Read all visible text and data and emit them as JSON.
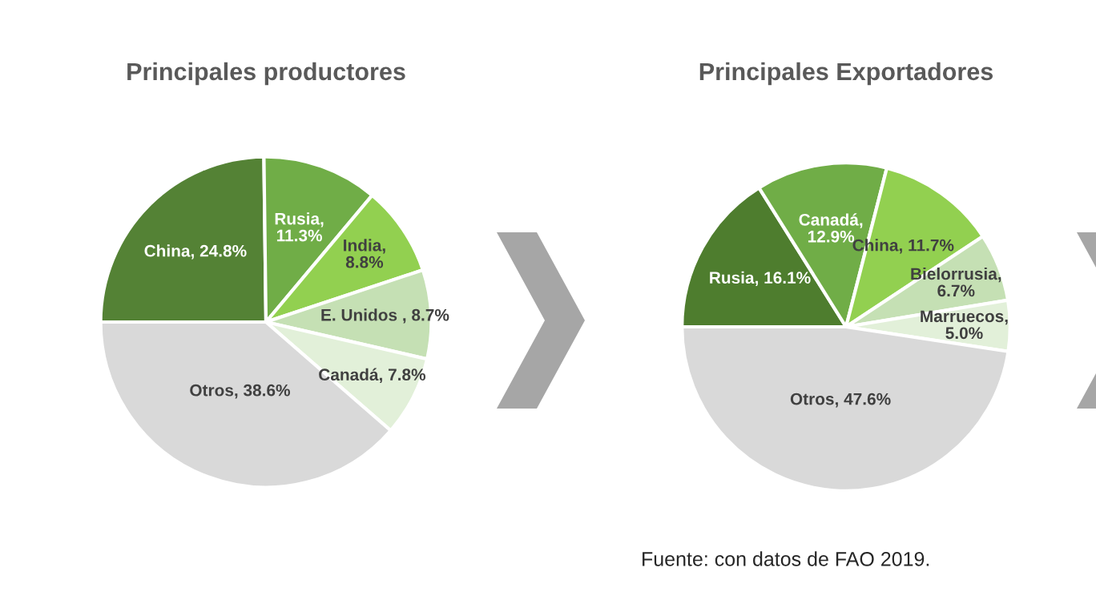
{
  "chart_data": [
    {
      "type": "pie",
      "title": "Principales productores",
      "categories": [
        "China, 24.8%",
        "Rusia,\n11.3%",
        "India,\n8.8%",
        "E. Unidos , 8.7%",
        "Canadá, 7.8%",
        "Otros, 38.6%"
      ],
      "values": [
        24.8,
        11.3,
        8.8,
        8.7,
        7.8,
        38.6
      ],
      "colors": [
        "#548235",
        "#70ad47",
        "#92d050",
        "#c5e0b4",
        "#e2f0d9",
        "#d9d9d9"
      ]
    },
    {
      "type": "pie",
      "title": "Principales Exportadores",
      "categories": [
        "Rusia, 16.1%",
        "Canadá,\n12.9%",
        "China, 11.7%",
        "Bielorrusia,\n6.7%",
        "Marruecos,\n5.0%",
        "Otros, 47.6%"
      ],
      "values": [
        16.1,
        12.9,
        11.7,
        6.7,
        5.0,
        47.6
      ],
      "colors": [
        "#4e7d2e",
        "#70ad47",
        "#92d050",
        "#c5e0b4",
        "#e2f0d9",
        "#d9d9d9"
      ],
      "annotations": [
        "Fuente: con datos de FAO 2019."
      ]
    }
  ]
}
